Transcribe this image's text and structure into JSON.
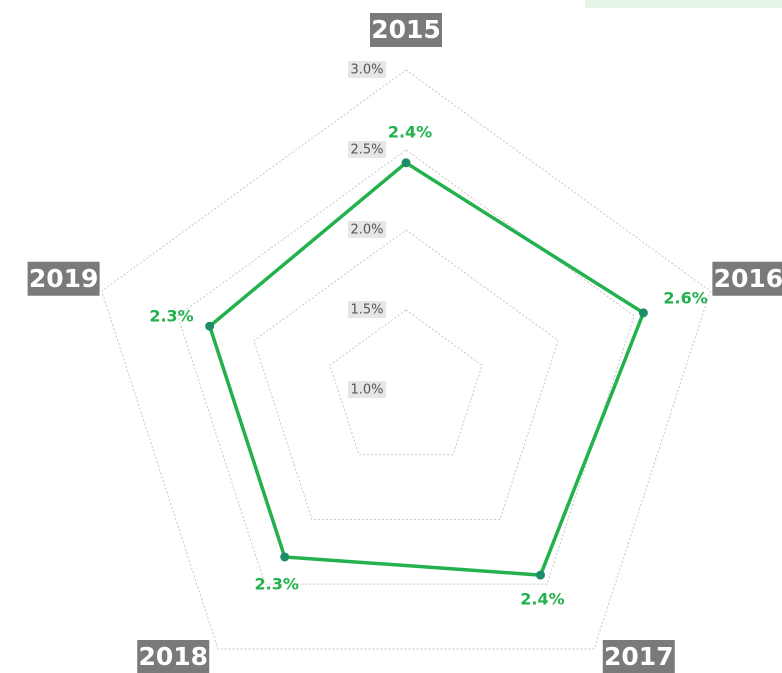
{
  "chart_data": {
    "type": "radar",
    "categories": [
      "2015",
      "2016",
      "2017",
      "2018",
      "2019"
    ],
    "series": [
      {
        "color": "#22b14c",
        "values": [
          2.42,
          2.56,
          2.43,
          2.29,
          2.29
        ],
        "value_labels": [
          "2.4%",
          "2.6%",
          "2.4%",
          "2.3%",
          "2.3%"
        ]
      }
    ],
    "ylim": [
      1.0,
      3.0
    ],
    "yticks": [
      {
        "value": 1.0,
        "label": "1.0%"
      },
      {
        "value": 1.5,
        "label": "1.5%"
      },
      {
        "value": 2.0,
        "label": "2.0%"
      },
      {
        "value": 2.5,
        "label": "2.5%"
      },
      {
        "value": 3.0,
        "label": "3.0%"
      }
    ],
    "grid": true
  }
}
